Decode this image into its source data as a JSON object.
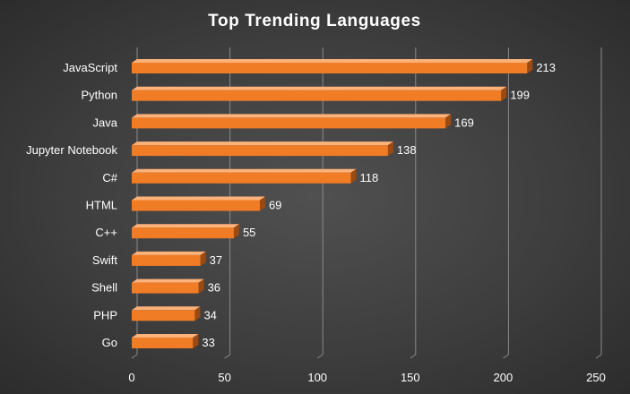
{
  "chart_data": {
    "type": "bar",
    "orientation": "horizontal",
    "title": "Top Trending Languages",
    "categories": [
      "JavaScript",
      "Python",
      "Java",
      "Jupyter Notebook",
      "C#",
      "HTML",
      "C++",
      "Swift",
      "Shell",
      "PHP",
      "Go"
    ],
    "values": [
      213,
      199,
      169,
      138,
      118,
      69,
      55,
      37,
      36,
      34,
      33
    ],
    "xlim": [
      0,
      250
    ],
    "xticks": [
      "0",
      "50",
      "100",
      "150",
      "200",
      "250"
    ],
    "grid": true,
    "legend": "none",
    "data_labels": true,
    "colors": {
      "bar": "#f07c26",
      "bar_top": "#ffb27a",
      "bar_shadow": "#9a4a12",
      "gridline": "#8a8a8a",
      "background": "#404040"
    }
  }
}
